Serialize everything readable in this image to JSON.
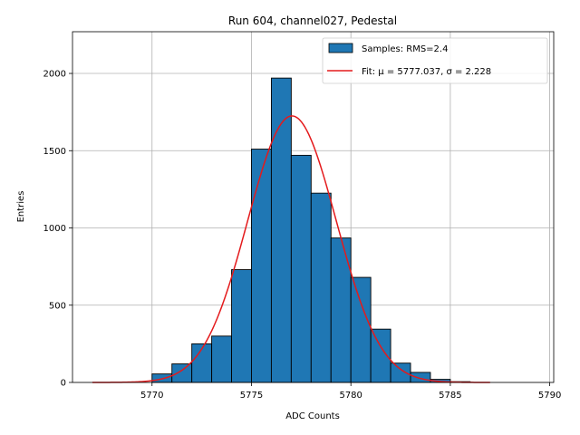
{
  "chart_data": {
    "type": "bar",
    "title": "Run 604, channel027, Pedestal",
    "xlabel": "ADC Counts",
    "ylabel": "Entries",
    "xlim": [
      5766,
      5790.2
    ],
    "ylim": [
      0,
      2270
    ],
    "xticks": [
      5770,
      5775,
      5780,
      5785,
      5790
    ],
    "yticks": [
      0,
      500,
      1000,
      1500,
      2000
    ],
    "grid": true,
    "legend_position": "top-right",
    "bin_width": 1,
    "bins": [
      {
        "x": 5770,
        "count": 55
      },
      {
        "x": 5771,
        "count": 120
      },
      {
        "x": 5772,
        "count": 250
      },
      {
        "x": 5773,
        "count": 300
      },
      {
        "x": 5774,
        "count": 730
      },
      {
        "x": 5775,
        "count": 1510
      },
      {
        "x": 5776,
        "count": 1970
      },
      {
        "x": 5777,
        "count": 1470
      },
      {
        "x": 5778,
        "count": 1225
      },
      {
        "x": 5779,
        "count": 935
      },
      {
        "x": 5780,
        "count": 680
      },
      {
        "x": 5781,
        "count": 345
      },
      {
        "x": 5782,
        "count": 125
      },
      {
        "x": 5783,
        "count": 65
      },
      {
        "x": 5784,
        "count": 20
      },
      {
        "x": 5785,
        "count": 5
      }
    ],
    "fit": {
      "mu": 5777.037,
      "sigma": 2.228,
      "amplitude": 1725,
      "x_range": [
        5767,
        5787
      ]
    },
    "series": [
      {
        "name": "Samples: RMS=2.4",
        "color": "#1f77b4"
      },
      {
        "name": "Fit: μ = 5777.037, σ = 2.228",
        "color": "#e41a1c"
      }
    ]
  }
}
